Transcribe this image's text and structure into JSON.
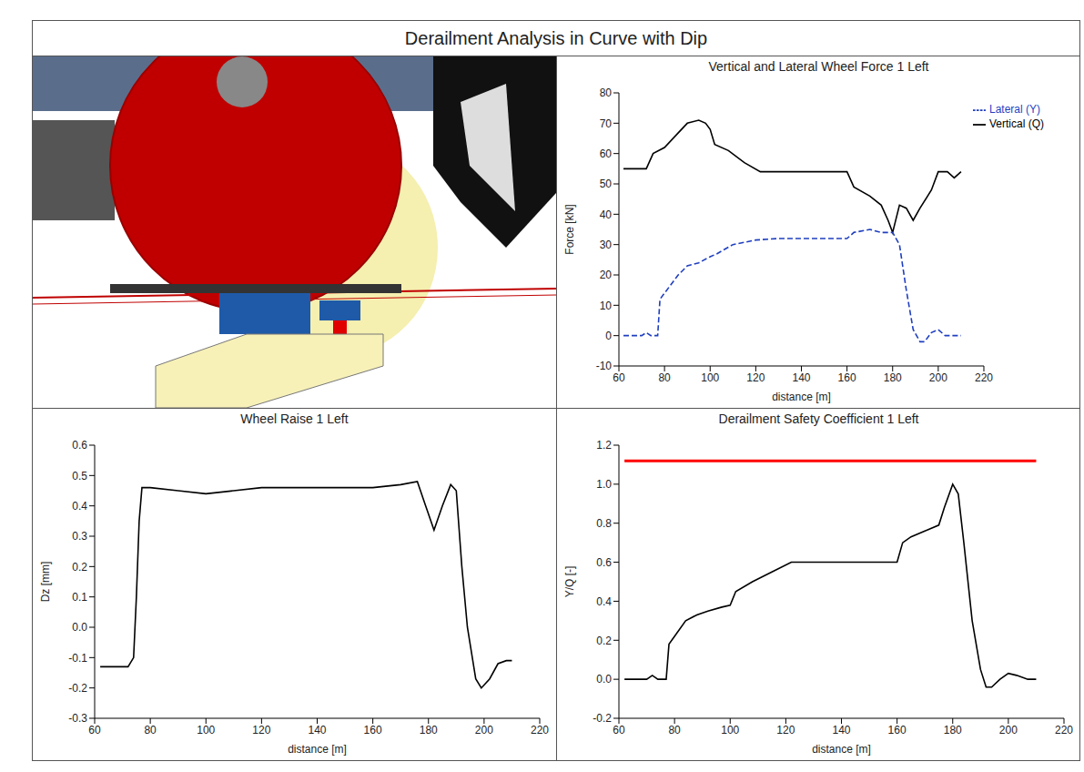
{
  "title": "Derailment Analysis in Curve with Dip",
  "chart_data": [
    {
      "type": "line",
      "title": "Vertical and Lateral Wheel Force 1 Left",
      "xlabel": "distance [m]",
      "ylabel": "Force [kN]",
      "xlim": [
        60,
        220
      ],
      "xticks": [
        60,
        80,
        100,
        120,
        140,
        160,
        180,
        200,
        220
      ],
      "ylim": [
        -10,
        80
      ],
      "yticks": [
        -10,
        0,
        10,
        20,
        30,
        40,
        50,
        60,
        70,
        80
      ],
      "legend": "top-right",
      "series": [
        {
          "name": "Vertical (Q)",
          "color": "#000000",
          "line_style": "solid",
          "x": [
            62,
            72,
            75,
            80,
            85,
            90,
            95,
            98,
            100,
            102,
            108,
            115,
            122,
            130,
            140,
            150,
            160,
            163,
            170,
            175,
            178,
            180,
            183,
            186,
            189,
            192,
            197,
            200,
            204,
            207,
            210
          ],
          "values": [
            55,
            55,
            60,
            62,
            66,
            70,
            71,
            70,
            68,
            63,
            61,
            57,
            54,
            54,
            54,
            54,
            54,
            49,
            46,
            43,
            38,
            34,
            43,
            42,
            38,
            42,
            48,
            54,
            54,
            52,
            54
          ]
        },
        {
          "name": "Lateral (Y)",
          "color": "#1f3fbf",
          "line_style": "dashed",
          "x": [
            62,
            70,
            72,
            74,
            77,
            78,
            82,
            86,
            90,
            95,
            100,
            103,
            110,
            120,
            130,
            140,
            150,
            160,
            163,
            170,
            175,
            180,
            183,
            186,
            189,
            192,
            194,
            197,
            200,
            203,
            210
          ],
          "values": [
            0,
            0,
            1,
            0,
            0,
            12,
            16,
            20,
            23,
            24,
            26,
            27,
            30,
            31.5,
            32,
            32,
            32,
            32,
            34,
            35,
            34,
            34,
            30,
            15,
            2,
            -2,
            -2,
            1,
            2,
            0,
            0
          ]
        }
      ]
    },
    {
      "type": "line",
      "title": "Wheel Raise 1 Left",
      "xlabel": "distance [m]",
      "ylabel": "Dz [mm]",
      "xlim": [
        60,
        220
      ],
      "xticks": [
        60,
        80,
        100,
        120,
        140,
        160,
        180,
        200,
        220
      ],
      "ylim": [
        -0.3,
        0.6
      ],
      "yticks": [
        -0.3,
        -0.2,
        -0.1,
        {
          "value": 0,
          "label": "0.0"
        },
        0.1,
        0.2,
        0.3,
        0.4,
        0.5,
        0.6
      ],
      "series": [
        {
          "color": "#000000",
          "line_style": "solid",
          "x": [
            62,
            72,
            74,
            75,
            76,
            77,
            80,
            90,
            100,
            110,
            120,
            140,
            160,
            170,
            176,
            179,
            182,
            185,
            188,
            190,
            192,
            194,
            197,
            199,
            202,
            205,
            208,
            210
          ],
          "values": [
            -0.13,
            -0.13,
            -0.1,
            0.1,
            0.35,
            0.46,
            0.46,
            0.45,
            0.44,
            0.45,
            0.46,
            0.46,
            0.46,
            0.47,
            0.48,
            0.4,
            0.32,
            0.4,
            0.47,
            0.45,
            0.2,
            0.0,
            -0.17,
            -0.2,
            -0.17,
            -0.12,
            -0.11,
            -0.11
          ]
        }
      ]
    },
    {
      "type": "line",
      "title": "Derailment Safety Coefficient 1 Left",
      "xlabel": "distance [m]",
      "ylabel": "Y/Q [-]",
      "xlim": [
        60,
        220
      ],
      "xticks": [
        60,
        80,
        100,
        120,
        140,
        160,
        180,
        200,
        220
      ],
      "ylim": [
        -0.2,
        1.2
      ],
      "yticks": [
        -0.2,
        {
          "value": 0,
          "label": "0.0"
        },
        0.2,
        0.4,
        0.6,
        0.8,
        {
          "value": 1,
          "label": "1.0"
        },
        1.2
      ],
      "limit": {
        "x": [
          62,
          210
        ],
        "values": [
          1.12,
          1.12
        ],
        "color": "#ff0000"
      },
      "series": [
        {
          "color": "#000000",
          "line_style": "solid",
          "x": [
            62,
            70,
            72,
            74,
            77,
            78,
            80,
            84,
            88,
            92,
            97,
            100,
            102,
            108,
            115,
            122,
            130,
            140,
            150,
            160,
            162,
            165,
            170,
            175,
            177,
            180,
            182,
            184,
            187,
            190,
            192,
            194,
            197,
            200,
            203,
            207,
            210
          ],
          "values": [
            0,
            0,
            0.02,
            0,
            0,
            0.18,
            0.22,
            0.3,
            0.33,
            0.35,
            0.37,
            0.38,
            0.45,
            0.5,
            0.55,
            0.6,
            0.6,
            0.6,
            0.6,
            0.6,
            0.7,
            0.73,
            0.76,
            0.79,
            0.88,
            1.0,
            0.95,
            0.7,
            0.3,
            0.05,
            -0.04,
            -0.04,
            0.0,
            0.03,
            0.02,
            0.0,
            0
          ]
        }
      ]
    }
  ]
}
